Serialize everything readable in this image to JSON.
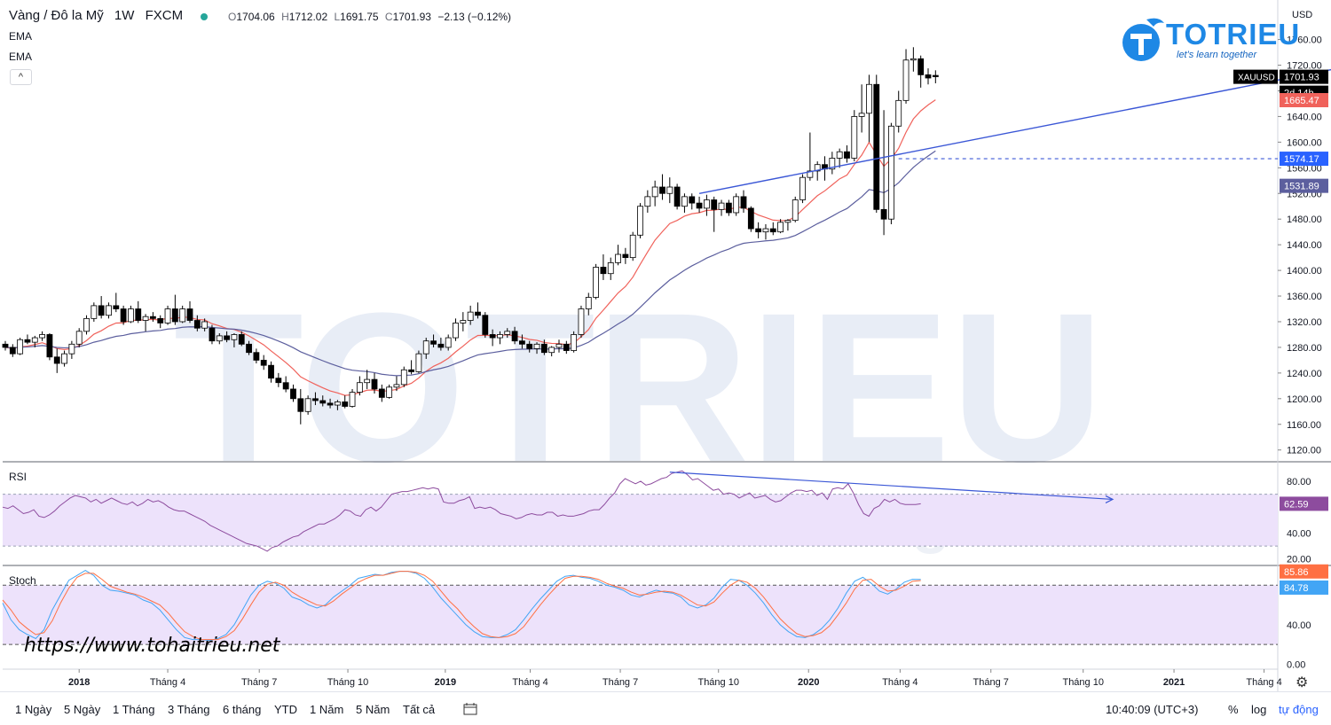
{
  "header": {
    "symbol": "Vàng / Đô la Mỹ",
    "interval": "1W",
    "exchange": "FXCM",
    "open_label": "O",
    "open": "1704.06",
    "high_label": "H",
    "high": "1712.02",
    "low_label": "L",
    "low": "1691.75",
    "close_label": "C",
    "close": "1701.93",
    "change": "−2.13 (−0.12%)"
  },
  "indicators": {
    "ema1": "EMA",
    "ema2": "EMA",
    "collapse_icon": "^"
  },
  "currency": "USD",
  "price_labels": {
    "ticker": "XAUUSD",
    "last": "1701.93",
    "countdown": "2d 14h",
    "ema_fast": "1665.47",
    "line": "1574.17",
    "ema_slow": "1531.89"
  },
  "rsi_panel": {
    "label": "RSI",
    "value": "62.59"
  },
  "stoch_panel": {
    "label": "Stoch",
    "k": "85.86",
    "d": "84.78"
  },
  "watermark_url": "https://www.tohaitrieu.net",
  "logo": {
    "name": "TOTRIEU",
    "slogan": "let's learn together",
    "background_text": "TOTRIEU",
    "background_slogan": "let's learn together"
  },
  "footer": {
    "ranges": [
      "1 Ngày",
      "5 Ngày",
      "1 Tháng",
      "3 Tháng",
      "6 tháng",
      "YTD",
      "1 Năm",
      "5 Năm",
      "Tất cả"
    ],
    "time": "10:40:09 (UTC+3)",
    "pct": "%",
    "log": "log",
    "auto": "tự động"
  },
  "colors": {
    "up": "#ffffff",
    "down": "#000000",
    "ema_fast": "#f0625b",
    "ema_slow": "#5c5f9e",
    "rsi": "#8d4c9e",
    "stoch_k": "#42a5f5",
    "stoch_d": "#ff7043",
    "band": "#ede2fb",
    "trend": "#3b57d6",
    "accent": "#1e88e5"
  },
  "chart_data": [
    {
      "type": "candlestick",
      "title": "Vàng / Đô la Mỹ 1W FXCM",
      "x_ticks": [
        "2018",
        "Tháng 4",
        "Tháng 7",
        "Tháng 10",
        "2019",
        "Tháng 4",
        "Tháng 7",
        "Tháng 10",
        "2020",
        "Tháng 4",
        "Tháng 7",
        "Tháng 10",
        "2021",
        "Tháng 4"
      ],
      "y_ticks": [
        "1760.00",
        "1720.00",
        "1680.00",
        "1640.00",
        "1600.00",
        "1560.00",
        "1520.00",
        "1480.00",
        "1440.00",
        "1400.00",
        "1360.00",
        "1320.00",
        "1280.00",
        "1240.00",
        "1200.00",
        "1160.00",
        "1120.00"
      ],
      "ylim": [
        1100,
        1780
      ],
      "x_range_weeks": [
        0,
        200
      ],
      "candles": [
        [
          1285,
          1290,
          1275,
          1280
        ],
        [
          1280,
          1285,
          1265,
          1270
        ],
        [
          1270,
          1295,
          1268,
          1292
        ],
        [
          1292,
          1300,
          1285,
          1288
        ],
        [
          1288,
          1298,
          1280,
          1295
        ],
        [
          1295,
          1305,
          1290,
          1300
        ],
        [
          1300,
          1302,
          1260,
          1265
        ],
        [
          1265,
          1278,
          1240,
          1255
        ],
        [
          1255,
          1275,
          1250,
          1270
        ],
        [
          1270,
          1290,
          1262,
          1285
        ],
        [
          1285,
          1310,
          1280,
          1305
        ],
        [
          1305,
          1330,
          1300,
          1325
        ],
        [
          1325,
          1350,
          1320,
          1345
        ],
        [
          1345,
          1360,
          1325,
          1330
        ],
        [
          1330,
          1350,
          1325,
          1345
        ],
        [
          1345,
          1365,
          1335,
          1340
        ],
        [
          1340,
          1345,
          1315,
          1320
        ],
        [
          1320,
          1345,
          1318,
          1340
        ],
        [
          1340,
          1352,
          1318,
          1322
        ],
        [
          1322,
          1332,
          1305,
          1328
        ],
        [
          1328,
          1335,
          1320,
          1325
        ],
        [
          1325,
          1330,
          1310,
          1318
        ],
        [
          1318,
          1345,
          1315,
          1340
        ],
        [
          1340,
          1362,
          1315,
          1320
        ],
        [
          1320,
          1345,
          1318,
          1340
        ],
        [
          1340,
          1352,
          1318,
          1322
        ],
        [
          1322,
          1330,
          1305,
          1310
        ],
        [
          1310,
          1325,
          1305,
          1320
        ],
        [
          1310,
          1315,
          1285,
          1290
        ],
        [
          1290,
          1302,
          1285,
          1298
        ],
        [
          1298,
          1305,
          1288,
          1292
        ],
        [
          1292,
          1302,
          1280,
          1300
        ],
        [
          1300,
          1305,
          1282,
          1285
        ],
        [
          1285,
          1290,
          1268,
          1272
        ],
        [
          1272,
          1278,
          1255,
          1260
        ],
        [
          1260,
          1268,
          1245,
          1252
        ],
        [
          1252,
          1258,
          1225,
          1232
        ],
        [
          1232,
          1240,
          1218,
          1225
        ],
        [
          1225,
          1235,
          1210,
          1215
        ],
        [
          1215,
          1222,
          1195,
          1200
        ],
        [
          1200,
          1215,
          1160,
          1180
        ],
        [
          1180,
          1205,
          1175,
          1200
        ],
        [
          1200,
          1210,
          1190,
          1197
        ],
        [
          1197,
          1205,
          1188,
          1193
        ],
        [
          1193,
          1200,
          1185,
          1190
        ],
        [
          1190,
          1198,
          1182,
          1195
        ],
        [
          1195,
          1205,
          1185,
          1188
        ],
        [
          1188,
          1215,
          1186,
          1210
        ],
        [
          1210,
          1235,
          1205,
          1225
        ],
        [
          1225,
          1245,
          1215,
          1230
        ],
        [
          1230,
          1240,
          1208,
          1215
        ],
        [
          1215,
          1222,
          1195,
          1202
        ],
        [
          1202,
          1222,
          1200,
          1218
        ],
        [
          1218,
          1235,
          1212,
          1222
        ],
        [
          1222,
          1250,
          1218,
          1245
        ],
        [
          1245,
          1260,
          1238,
          1242
        ],
        [
          1242,
          1275,
          1240,
          1270
        ],
        [
          1270,
          1295,
          1262,
          1290
        ],
        [
          1290,
          1300,
          1280,
          1285
        ],
        [
          1285,
          1295,
          1275,
          1280
        ],
        [
          1280,
          1300,
          1275,
          1295
        ],
        [
          1295,
          1325,
          1290,
          1318
        ],
        [
          1318,
          1335,
          1305,
          1322
        ],
        [
          1322,
          1345,
          1315,
          1335
        ],
        [
          1335,
          1350,
          1325,
          1330
        ],
        [
          1330,
          1335,
          1295,
          1300
        ],
        [
          1300,
          1308,
          1282,
          1295
        ],
        [
          1295,
          1305,
          1285,
          1300
        ],
        [
          1300,
          1310,
          1295,
          1305
        ],
        [
          1305,
          1312,
          1285,
          1290
        ],
        [
          1290,
          1300,
          1278,
          1285
        ],
        [
          1285,
          1290,
          1272,
          1278
        ],
        [
          1278,
          1288,
          1270,
          1285
        ],
        [
          1285,
          1292,
          1268,
          1272
        ],
        [
          1272,
          1282,
          1266,
          1280
        ],
        [
          1280,
          1292,
          1272,
          1285
        ],
        [
          1285,
          1290,
          1270,
          1275
        ],
        [
          1275,
          1305,
          1272,
          1300
        ],
        [
          1300,
          1345,
          1295,
          1340
        ],
        [
          1340,
          1365,
          1330,
          1358
        ],
        [
          1358,
          1410,
          1355,
          1405
        ],
        [
          1405,
          1425,
          1385,
          1395
        ],
        [
          1395,
          1420,
          1385,
          1412
        ],
        [
          1412,
          1440,
          1408,
          1425
        ],
        [
          1425,
          1435,
          1410,
          1420
        ],
        [
          1420,
          1460,
          1415,
          1455
        ],
        [
          1455,
          1505,
          1450,
          1500
        ],
        [
          1500,
          1525,
          1490,
          1515
        ],
        [
          1515,
          1540,
          1500,
          1530
        ],
        [
          1530,
          1550,
          1510,
          1520
        ],
        [
          1520,
          1545,
          1505,
          1530
        ],
        [
          1530,
          1535,
          1495,
          1500
        ],
        [
          1500,
          1520,
          1490,
          1515
        ],
        [
          1515,
          1520,
          1495,
          1505
        ],
        [
          1505,
          1515,
          1490,
          1497
        ],
        [
          1497,
          1518,
          1485,
          1510
        ],
        [
          1510,
          1515,
          1460,
          1495
        ],
        [
          1495,
          1510,
          1485,
          1505
        ],
        [
          1505,
          1510,
          1485,
          1490
        ],
        [
          1490,
          1520,
          1485,
          1515
        ],
        [
          1515,
          1525,
          1490,
          1497
        ],
        [
          1497,
          1500,
          1460,
          1465
        ],
        [
          1465,
          1475,
          1450,
          1460
        ],
        [
          1460,
          1472,
          1448,
          1465
        ],
        [
          1465,
          1475,
          1455,
          1460
        ],
        [
          1460,
          1480,
          1458,
          1475
        ],
        [
          1475,
          1480,
          1462,
          1478
        ],
        [
          1478,
          1515,
          1475,
          1510
        ],
        [
          1510,
          1550,
          1505,
          1545
        ],
        [
          1545,
          1615,
          1540,
          1555
        ],
        [
          1555,
          1570,
          1540,
          1565
        ],
        [
          1565,
          1578,
          1540,
          1558
        ],
        [
          1558,
          1585,
          1550,
          1575
        ],
        [
          1575,
          1590,
          1560,
          1585
        ],
        [
          1585,
          1595,
          1568,
          1575
        ],
        [
          1575,
          1650,
          1570,
          1640
        ],
        [
          1640,
          1690,
          1615,
          1645
        ],
        [
          1645,
          1705,
          1600,
          1690
        ],
        [
          1690,
          1705,
          1490,
          1495
        ],
        [
          1495,
          1650,
          1455,
          1480
        ],
        [
          1480,
          1630,
          1472,
          1625
        ],
        [
          1625,
          1680,
          1615,
          1665
        ],
        [
          1665,
          1745,
          1660,
          1728
        ],
        [
          1728,
          1748,
          1710,
          1730
        ],
        [
          1730,
          1735,
          1685,
          1705
        ],
        [
          1705,
          1715,
          1690,
          1700
        ],
        [
          1704.06,
          1712.02,
          1691.75,
          1701.93
        ]
      ],
      "annotations": [
        {
          "type": "trendline",
          "from": [
            94,
            1520
          ],
          "to": [
            196,
            1750
          ]
        },
        {
          "type": "horizontal_line",
          "value": 1574.17
        }
      ]
    },
    {
      "type": "line",
      "title": "RSI",
      "ylim": [
        15,
        95
      ],
      "y_ticks": [
        "80.00",
        "60.00",
        "40.00",
        "20.00"
      ],
      "band": [
        30,
        70
      ],
      "values": [
        60,
        59,
        61,
        58,
        55,
        56,
        58,
        53,
        52,
        54,
        57,
        61,
        64,
        67,
        69,
        68,
        67,
        64,
        66,
        63,
        65,
        67,
        65,
        63,
        62,
        64,
        61,
        63,
        66,
        64,
        65,
        63,
        60,
        58,
        57,
        57,
        55,
        53,
        51,
        49,
        46,
        44,
        42,
        40,
        38,
        36,
        34,
        32,
        31,
        30,
        28,
        26,
        29,
        30,
        33,
        35,
        37,
        38,
        41,
        43,
        45,
        47,
        47,
        49,
        51,
        54,
        58,
        57,
        54,
        53,
        58,
        60,
        57,
        60,
        65,
        70,
        71,
        72,
        72,
        73,
        74,
        75,
        74,
        75,
        74,
        64,
        63,
        63,
        65,
        66,
        68,
        59,
        60,
        59,
        60,
        58,
        55,
        54,
        53,
        51,
        52,
        54,
        55,
        54,
        54,
        56,
        56,
        53,
        54,
        53,
        53,
        54,
        55,
        57,
        58,
        58,
        62,
        67,
        71,
        78,
        82,
        80,
        78,
        80,
        77,
        78,
        80,
        82,
        83,
        86,
        87,
        88,
        85,
        81,
        82,
        79,
        76,
        73,
        74,
        70,
        71,
        70,
        67,
        69,
        71,
        67,
        68,
        69,
        66,
        64,
        65,
        68,
        71,
        73,
        73,
        72,
        73,
        69,
        71,
        66,
        74,
        75,
        74,
        78,
        71,
        62,
        55,
        53,
        59,
        61,
        66,
        64,
        66,
        63,
        62,
        62,
        62,
        62.59
      ]
    },
    {
      "type": "line",
      "title": "Stoch",
      "ylim": [
        -5,
        100
      ],
      "y_ticks": [
        "80.00",
        "40.00",
        "0.00"
      ],
      "band": [
        20,
        80
      ],
      "series": [
        {
          "name": "%K",
          "values": [
            62,
            45,
            35,
            30,
            26,
            35,
            55,
            70,
            85,
            90,
            95,
            90,
            80,
            75,
            74,
            72,
            70,
            65,
            62,
            55,
            45,
            35,
            27,
            25,
            25,
            24,
            26,
            30,
            40,
            55,
            70,
            80,
            84,
            82,
            77,
            68,
            65,
            60,
            57,
            60,
            68,
            74,
            80,
            87,
            89,
            91,
            90,
            93,
            94,
            94,
            92,
            87,
            78,
            67,
            58,
            49,
            40,
            33,
            28,
            27,
            27,
            30,
            35,
            45,
            56,
            66,
            75,
            84,
            89,
            90,
            88,
            87,
            84,
            80,
            78,
            75,
            70,
            68,
            72,
            75,
            73,
            72,
            68,
            60,
            57,
            60,
            67,
            78,
            86,
            85,
            80,
            72,
            62,
            50,
            40,
            33,
            28,
            27,
            30,
            36,
            45,
            57,
            72,
            84,
            88,
            82,
            74,
            71,
            76,
            83,
            86,
            85.86
          ]
        },
        {
          "name": "%D",
          "values": [
            65,
            55,
            43,
            36,
            30,
            32,
            44,
            62,
            77,
            88,
            92,
            92,
            86,
            79,
            76,
            73,
            71,
            68,
            64,
            60,
            52,
            42,
            33,
            28,
            25,
            25,
            25,
            28,
            34,
            46,
            60,
            73,
            81,
            83,
            80,
            73,
            68,
            64,
            60,
            59,
            64,
            71,
            77,
            83,
            87,
            90,
            90,
            92,
            94,
            94,
            93,
            90,
            84,
            74,
            64,
            56,
            46,
            38,
            31,
            28,
            27,
            28,
            31,
            38,
            49,
            60,
            70,
            79,
            87,
            89,
            89,
            88,
            86,
            82,
            79,
            77,
            73,
            70,
            71,
            73,
            74,
            73,
            70,
            65,
            60,
            59,
            63,
            72,
            80,
            85,
            83,
            77,
            68,
            57,
            46,
            38,
            31,
            28,
            29,
            32,
            39,
            50,
            62,
            76,
            85,
            86,
            79,
            74,
            75,
            79,
            84,
            84.78
          ]
        }
      ]
    }
  ]
}
